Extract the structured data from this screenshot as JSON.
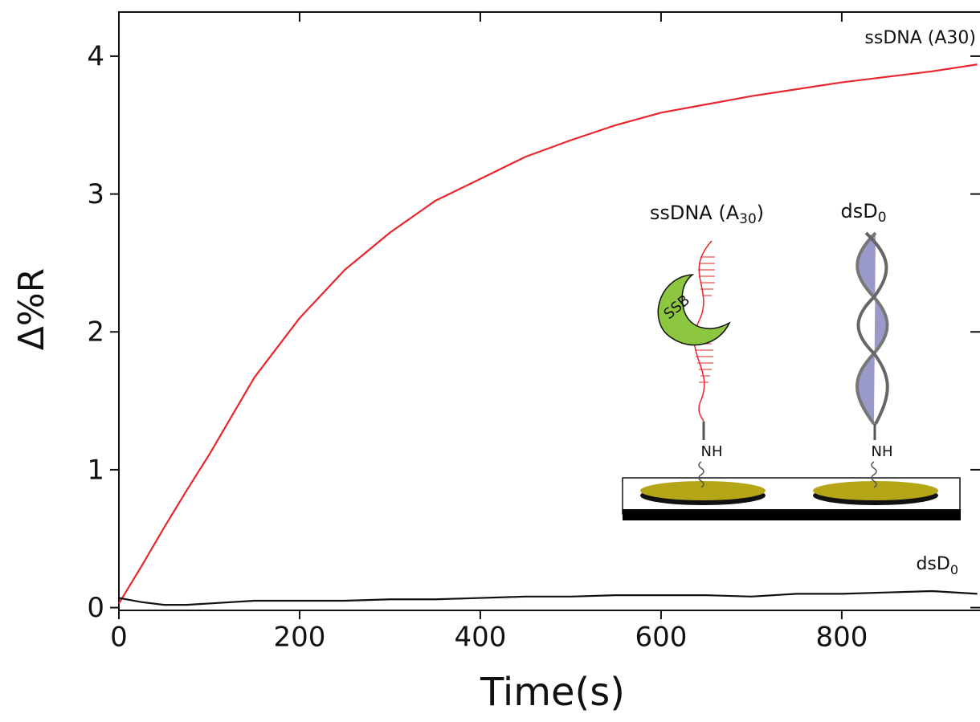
{
  "chart_data": {
    "type": "line",
    "x_label": "Time(s)",
    "y_label": "Δ%R",
    "x": [
      0,
      25,
      50,
      75,
      100,
      150,
      200,
      250,
      300,
      350,
      400,
      450,
      500,
      550,
      600,
      650,
      700,
      750,
      800,
      850,
      900,
      950
    ],
    "series": [
      {
        "name": "ssDNA (A30)",
        "color": "#e8262b",
        "values": [
          0.03,
          0.3,
          0.58,
          0.85,
          1.11,
          1.67,
          2.1,
          2.45,
          2.72,
          2.95,
          3.11,
          3.27,
          3.39,
          3.5,
          3.59,
          3.65,
          3.71,
          3.76,
          3.81,
          3.85,
          3.89,
          3.94
        ]
      },
      {
        "name": {
          "text": "dsD",
          "subscript": "0"
        },
        "color": "#111111",
        "values": [
          0.07,
          0.04,
          0.02,
          0.02,
          0.03,
          0.05,
          0.05,
          0.05,
          0.06,
          0.06,
          0.07,
          0.08,
          0.08,
          0.09,
          0.09,
          0.09,
          0.08,
          0.1,
          0.1,
          0.11,
          0.12,
          0.1
        ]
      }
    ],
    "xlim": [
      0,
      953
    ],
    "ylim": [
      -0.02,
      4.32
    ],
    "xticks": [
      0,
      200,
      400,
      600,
      800
    ],
    "yticks": [
      0,
      1,
      2,
      3,
      4
    ],
    "inset": {
      "labels": [
        {
          "text": "ssDNA (A",
          "subscript": "30",
          "suffix": ")"
        },
        {
          "text": "dsD",
          "subscript": "0"
        }
      ],
      "protein": "SSB",
      "linkers": [
        "NH",
        "NH"
      ]
    }
  }
}
